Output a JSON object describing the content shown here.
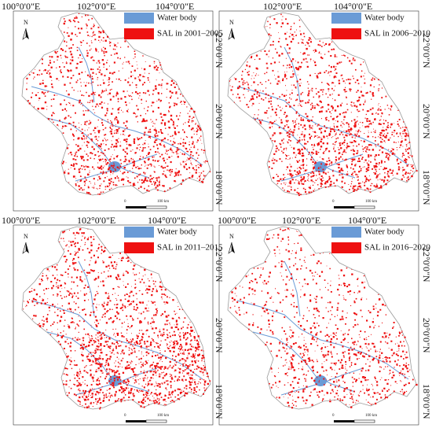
{
  "colors": {
    "water": "#6a9bd6",
    "sal": "#ee1111",
    "boundary": "#9a9a9a"
  },
  "north_label": "N",
  "legend": {
    "water_label": "Water body"
  },
  "scale": {
    "start": "0",
    "end": "100 km"
  },
  "panels": [
    {
      "sal_label": "SAL in 2001–2005",
      "top_labels": [
        "100°0'0\"E",
        "102°0'0\"E",
        "104°0'0\"E"
      ],
      "side_labels": [
        "22°0'0\"N",
        "20°0'0\"N",
        "18°0'0\"N"
      ],
      "density": 0.55
    },
    {
      "sal_label": "SAL in 2006–2010",
      "top_labels": [
        "",
        "102°0'0\"E",
        "104°0'0\"E"
      ],
      "side_labels": [
        "22°0'0\"N",
        "20°0'0\"N",
        "18°0'0\"N"
      ],
      "density": 0.62
    },
    {
      "sal_label": "SAL in 2011–2015",
      "top_labels": [
        "100°0'0\"E",
        "102°0'0\"E",
        "104°0'0\"E"
      ],
      "side_labels": [
        "22°0'0\"N",
        "20°0'0\"N",
        "18°0'0\"N"
      ],
      "density": 0.68
    },
    {
      "sal_label": "SAL in 2016–2020",
      "top_labels": [
        "100°0'0\"E",
        "102°0'0\"E",
        "104°0'0\"E"
      ],
      "side_labels": [
        "22°0'0\"N",
        "20°0'0\"N",
        "18°0'0\"N"
      ],
      "density": 0.38
    }
  ]
}
